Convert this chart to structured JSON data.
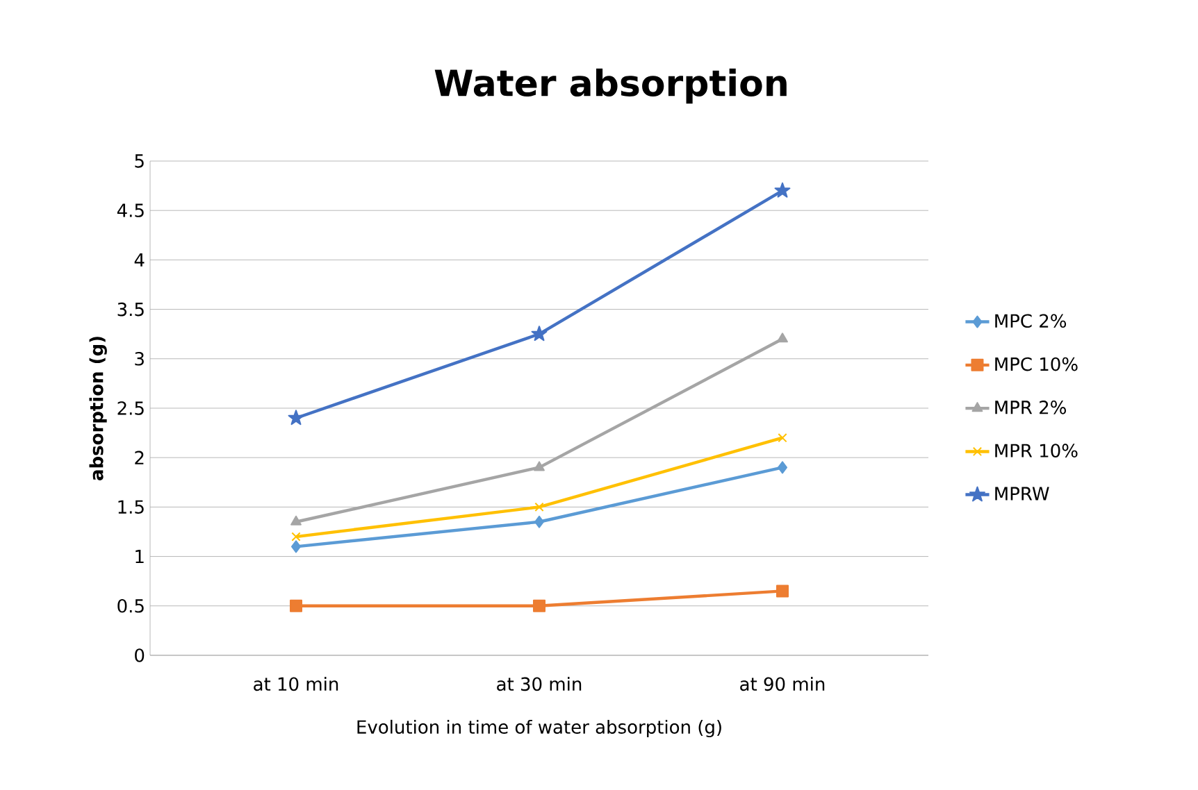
{
  "chart_data": {
    "type": "line",
    "title": "Water absorption",
    "xlabel": "Evolution in time of water absorption (g)",
    "ylabel": "absorption (g)",
    "categories": [
      "at 10 min",
      "at 30 min",
      "at 90 min"
    ],
    "series": [
      {
        "name": "MPC 2%",
        "color": "#5b9bd5",
        "marker": "diamond",
        "values": [
          1.1,
          1.35,
          1.9
        ]
      },
      {
        "name": "MPC 10%",
        "color": "#ed7d31",
        "marker": "square",
        "values": [
          0.5,
          0.5,
          0.65
        ]
      },
      {
        "name": "MPR 2%",
        "color": "#a5a5a5",
        "marker": "triangle",
        "values": [
          1.35,
          1.9,
          3.2
        ]
      },
      {
        "name": "MPR 10%",
        "color": "#ffc000",
        "marker": "cross",
        "values": [
          1.2,
          1.5,
          2.2
        ]
      },
      {
        "name": "MPRW",
        "color": "#4472c4",
        "marker": "star",
        "values": [
          2.4,
          3.25,
          4.7
        ]
      }
    ],
    "ylim": [
      0,
      5
    ],
    "yticks": [
      0,
      0.5,
      1,
      1.5,
      2,
      2.5,
      3,
      3.5,
      4,
      4.5,
      5
    ],
    "grid": "y",
    "legend": "right",
    "line_style": "solid"
  }
}
